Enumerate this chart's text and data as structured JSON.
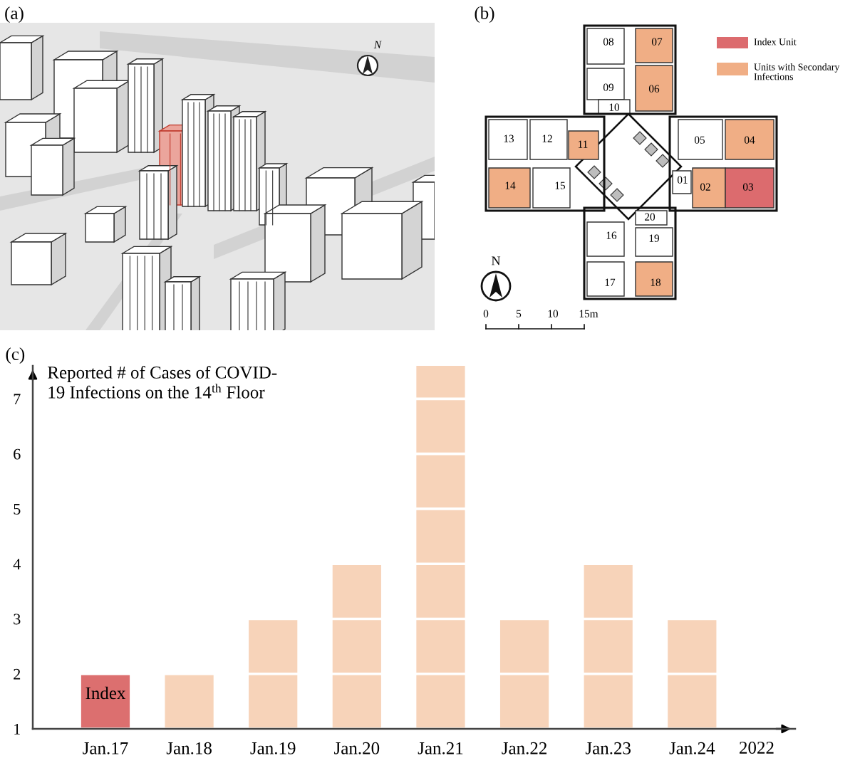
{
  "chart_data": [
    {
      "type": "other",
      "title": "(a)",
      "annotations": [
        "N"
      ]
    },
    {
      "type": "other",
      "title": "(b)",
      "annotations": [
        "08",
        "07",
        "09",
        "06",
        "10",
        "13",
        "12",
        "11",
        "05",
        "04",
        "14",
        "15",
        "01",
        "02",
        "03",
        "20",
        "16",
        "19",
        "17",
        "18",
        "Index Unit",
        "Units with Secondary Infections",
        "N",
        "0",
        "5",
        "10",
        "15m"
      ]
    },
    {
      "type": "bar",
      "title": "(c)",
      "ylabel": "Reported # of Cases of COVID-\n19 Infections on the 14$^{th}$ Floor",
      "xlabel": "2022",
      "categories": [
        "Jan.17",
        "Jan.18",
        "Jan.19",
        "Jan.20",
        "Jan.21",
        "Jan.22",
        "Jan.23",
        "Jan.24"
      ],
      "values": [
        2,
        2,
        3,
        4,
        7.6,
        3,
        4,
        3
      ],
      "colors": [
        "#dc6f6f",
        "#f7d3b9",
        "#f7d3b9",
        "#f7d3b9",
        "#f7d3b9",
        "#f7d3b9",
        "#f7d3b9",
        "#f7d3b9"
      ],
      "ylim": [
        1,
        7.6
      ],
      "yticks": [
        1,
        2,
        3,
        4,
        5,
        6,
        7
      ],
      "grid": "y",
      "annotations": [
        "Index"
      ]
    }
  ]
}
